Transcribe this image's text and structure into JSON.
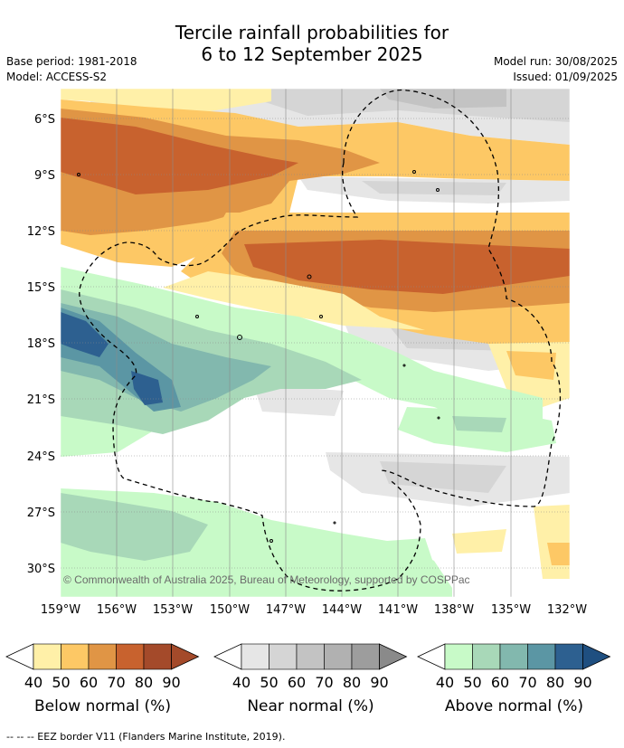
{
  "title_line1": "Tercile rainfall probabilities for",
  "title_line2": "6 to 12 September 2025",
  "meta_left": {
    "base_period": "Base period: 1981-2018",
    "model": "Model: ACCESS-S2"
  },
  "meta_right": {
    "model_run": "Model run: 30/08/2025",
    "issued": "Issued: 01/09/2025"
  },
  "lat_labels": [
    "6°S",
    "9°S",
    "12°S",
    "15°S",
    "18°S",
    "21°S",
    "24°S",
    "27°S",
    "30°S"
  ],
  "lon_labels": [
    "159°W",
    "156°W",
    "153°W",
    "150°W",
    "147°W",
    "144°W",
    "141°W",
    "138°W",
    "135°W",
    "132°W"
  ],
  "copyright": "© Commonwealth of Australia 2025, Bureau of Meteorology, supported by COSPPac",
  "legends": [
    {
      "label": "Below normal (%)",
      "ticks": [
        "40",
        "50",
        "60",
        "70",
        "80",
        "90"
      ],
      "colors": [
        "#fff0a8",
        "#fdc865",
        "#e09545",
        "#c8622e",
        "#a44a2a"
      ]
    },
    {
      "label": "Near normal (%)",
      "ticks": [
        "40",
        "50",
        "60",
        "70",
        "80",
        "90"
      ],
      "colors": [
        "#e6e6e6",
        "#d5d5d5",
        "#c3c3c3",
        "#b1b1b1",
        "#9d9d9d"
      ]
    },
    {
      "label": "Above normal (%)",
      "ticks": [
        "40",
        "50",
        "60",
        "70",
        "80",
        "90"
      ],
      "colors": [
        "#c8fac8",
        "#a8d8b8",
        "#82b8ae",
        "#5b96a4",
        "#2d6090"
      ]
    }
  ],
  "footnote": "--  --  -- EEZ border V11 (Flanders Marine Institute, 2019).",
  "colors": {
    "below": [
      "#fff0a8",
      "#fdc865",
      "#e09545",
      "#c8622e",
      "#a44a2a"
    ],
    "near": [
      "#e6e6e6",
      "#d5d5d5",
      "#c3c3c3",
      "#b1b1b1",
      "#9d9d9d"
    ],
    "above": [
      "#c8fac8",
      "#a8d8b8",
      "#82b8ae",
      "#5b96a4",
      "#2d6090"
    ]
  }
}
